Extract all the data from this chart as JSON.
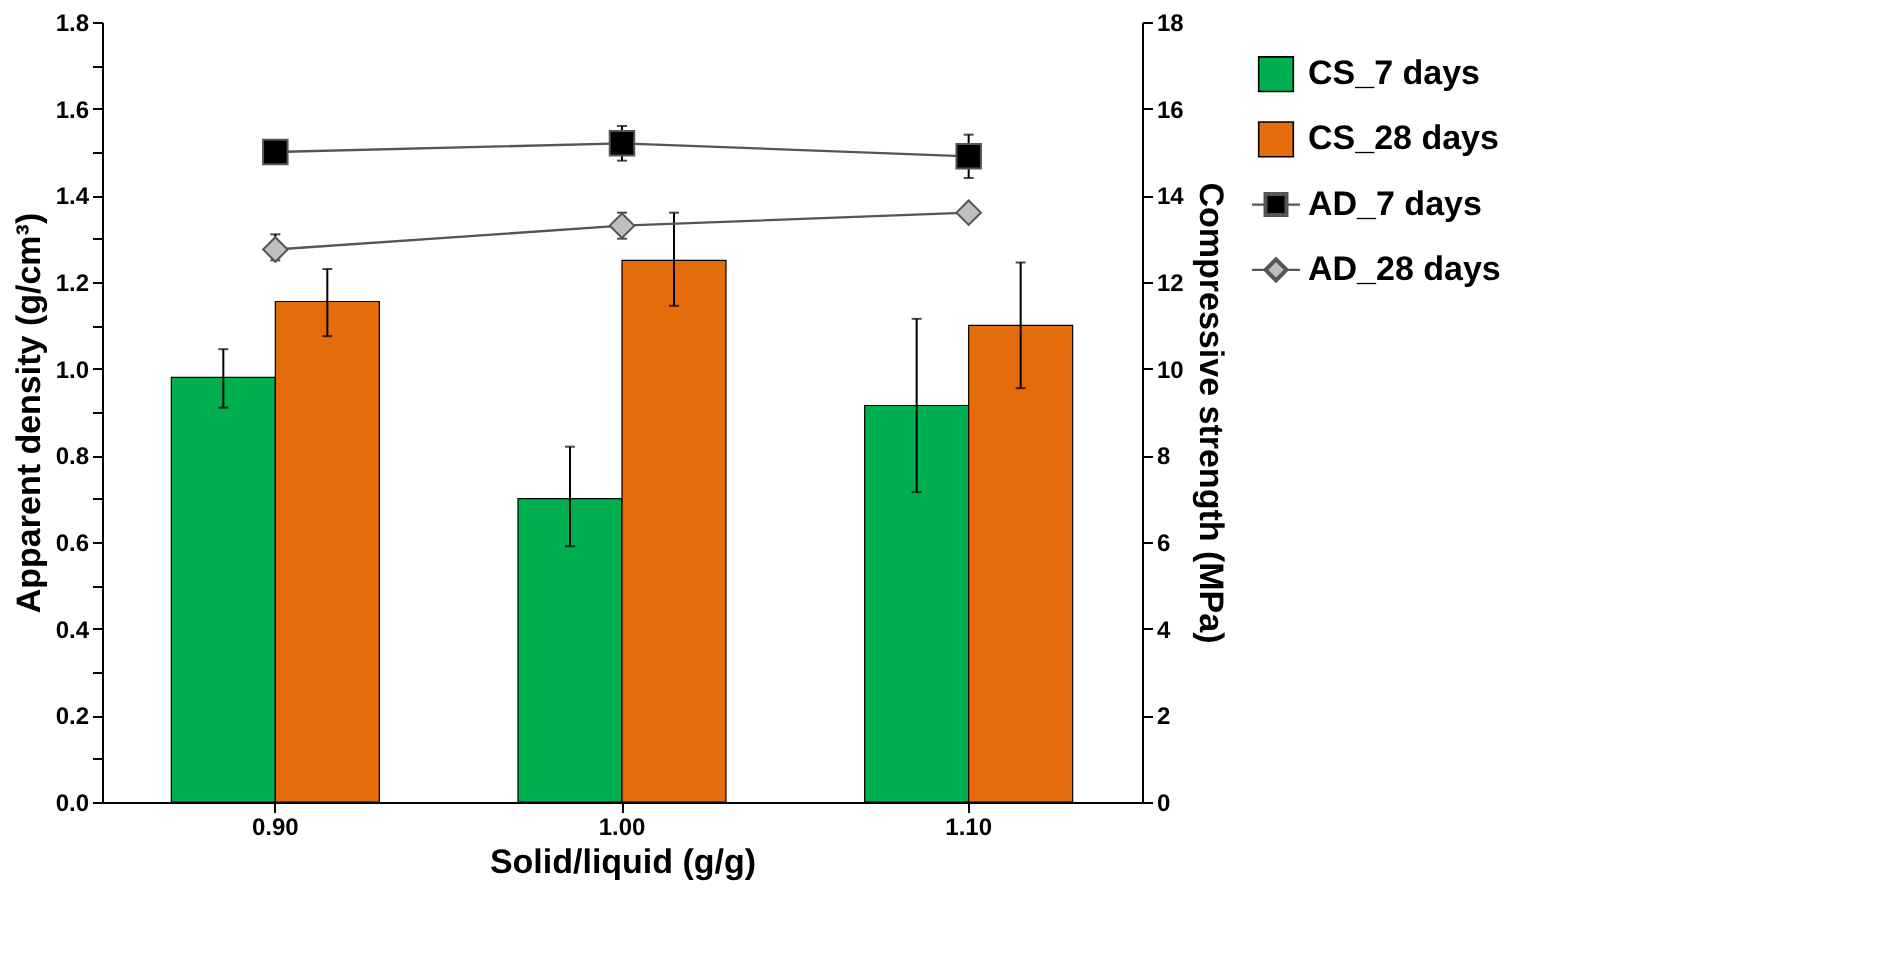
{
  "chart_data": {
    "type": "bar",
    "xlabel": "Solid/liquid (g/g)",
    "ylabel": "Apparent density (g/cm³)",
    "y2label": "Compressive strength (MPa)",
    "categories": [
      "0.90",
      "1.00",
      "1.10"
    ],
    "series": [
      {
        "name": "CS_7 days",
        "axis": "y2",
        "color": "#00b050",
        "values": [
          9.8,
          7.0,
          9.15
        ],
        "errors": [
          [
            9.1,
            10.45
          ],
          [
            5.9,
            8.2
          ],
          [
            7.15,
            11.15
          ]
        ]
      },
      {
        "name": "CS_28 days",
        "axis": "y2",
        "color": "#e46c0a",
        "values": [
          11.55,
          12.5,
          11.0
        ],
        "errors": [
          [
            10.75,
            12.3
          ],
          [
            11.45,
            13.6
          ],
          [
            9.55,
            12.45
          ]
        ]
      },
      {
        "name": "AD_7 days",
        "type": "line",
        "axis": "y",
        "color": "#000000",
        "marker": "square",
        "line_style": "solid",
        "values": [
          1.5,
          1.52,
          1.49
        ],
        "errors": [
          null,
          [
            1.48,
            1.56
          ],
          [
            1.44,
            1.54
          ]
        ]
      },
      {
        "name": "AD_28 days",
        "type": "line",
        "axis": "y",
        "color": "#bfbfbf",
        "marker": "diamond",
        "line_style": "solid",
        "values": [
          1.275,
          1.33,
          1.36
        ],
        "errors": [
          [
            1.25,
            1.31
          ],
          [
            1.3,
            1.36
          ],
          null
        ]
      }
    ],
    "ylim": [
      0,
      1.8
    ],
    "yticks": [
      {
        "value": 0,
        "label": "0.0"
      },
      {
        "value": 0.1,
        "label": null
      },
      {
        "value": 0.2,
        "label": "0.2"
      },
      {
        "value": 0.3,
        "label": null
      },
      {
        "value": 0.4,
        "label": "0.4"
      },
      {
        "value": 0.5,
        "label": null
      },
      {
        "value": 0.6,
        "label": "0.6"
      },
      {
        "value": 0.7,
        "label": null
      },
      {
        "value": 0.8,
        "label": "0.8"
      },
      {
        "value": 0.9,
        "label": null
      },
      {
        "value": 1.0,
        "label": "1.0"
      },
      {
        "value": 1.1,
        "label": null
      },
      {
        "value": 1.2,
        "label": "1.2"
      },
      {
        "value": 1.3,
        "label": null
      },
      {
        "value": 1.4,
        "label": "1.4"
      },
      {
        "value": 1.5,
        "label": null
      },
      {
        "value": 1.6,
        "label": "1.6"
      },
      {
        "value": 1.7,
        "label": null
      },
      {
        "value": 1.8,
        "label": "1.8"
      }
    ],
    "y2lim": [
      0,
      18
    ],
    "y2ticks": [
      0,
      2,
      4,
      6,
      8,
      10,
      12,
      14,
      16,
      18
    ],
    "grid": false,
    "legend": "right"
  }
}
